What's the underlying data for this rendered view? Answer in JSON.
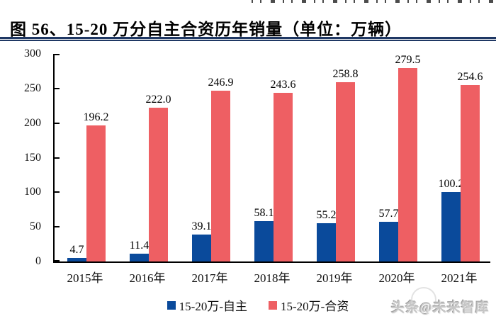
{
  "chart_data": {
    "type": "bar",
    "title": "图 56、15-20 万分自主合资历年销量（单位：万辆）",
    "unit_label": "万辆",
    "categories": [
      "2015年",
      "2016年",
      "2017年",
      "2018年",
      "2019年",
      "2020年",
      "2021年"
    ],
    "series": [
      {
        "name": "15-20万-自主",
        "color": "#0A4A9B",
        "values": [
          4.7,
          11.4,
          39.1,
          58.1,
          55.2,
          57.7,
          100.2
        ]
      },
      {
        "name": "15-20万-合资",
        "color": "#EE5F63",
        "values": [
          196.2,
          222.0,
          246.9,
          243.6,
          258.8,
          279.5,
          254.6
        ]
      }
    ],
    "ylim": [
      0,
      300
    ],
    "yticks": [
      0,
      50,
      100,
      150,
      200,
      250,
      300
    ],
    "grid": false,
    "legend_position": "bottom",
    "value_labels": true,
    "value_label_decimals": 1
  },
  "watermark": {
    "text": "头条@未来智库"
  },
  "colors": {
    "bar_blue": "#0A4A9B",
    "bar_red": "#EE5F63",
    "title_rule": "#1F3864",
    "axis_line": "#000000",
    "chart_text": "#151515",
    "watermark_text": "#C6C6C6"
  }
}
